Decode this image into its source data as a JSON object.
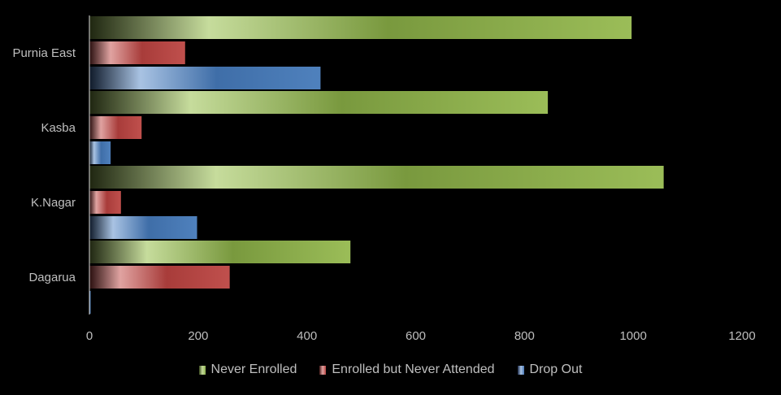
{
  "chart_data": {
    "type": "bar",
    "orientation": "horizontal",
    "categories": [
      "Purnia East",
      "Kasba",
      "K.Nagar",
      "Dagarua"
    ],
    "series": [
      {
        "name": "Never Enrolled",
        "values": [
          997,
          843,
          1056,
          480
        ],
        "color": "#8db04e"
      },
      {
        "name": "Enrolled but Never Attended",
        "values": [
          176,
          96,
          58,
          258
        ],
        "color": "#b84543"
      },
      {
        "name": "Drop Out",
        "values": [
          425,
          39,
          198,
          2
        ],
        "color": "#4a79b8"
      }
    ],
    "title": "",
    "xlabel": "",
    "ylabel": "",
    "xlim": [
      0,
      1200
    ],
    "xticks": [
      "0",
      "200",
      "400",
      "600",
      "800",
      "1000",
      "1200"
    ],
    "grid": false,
    "legend_position": "bottom"
  },
  "legend": {
    "items": [
      {
        "label": "Never Enrolled",
        "color": "#8db04e"
      },
      {
        "label": "Enrolled but Never Attended",
        "color": "#b84543"
      },
      {
        "label": "Drop Out",
        "color": "#4a79b8"
      }
    ]
  }
}
